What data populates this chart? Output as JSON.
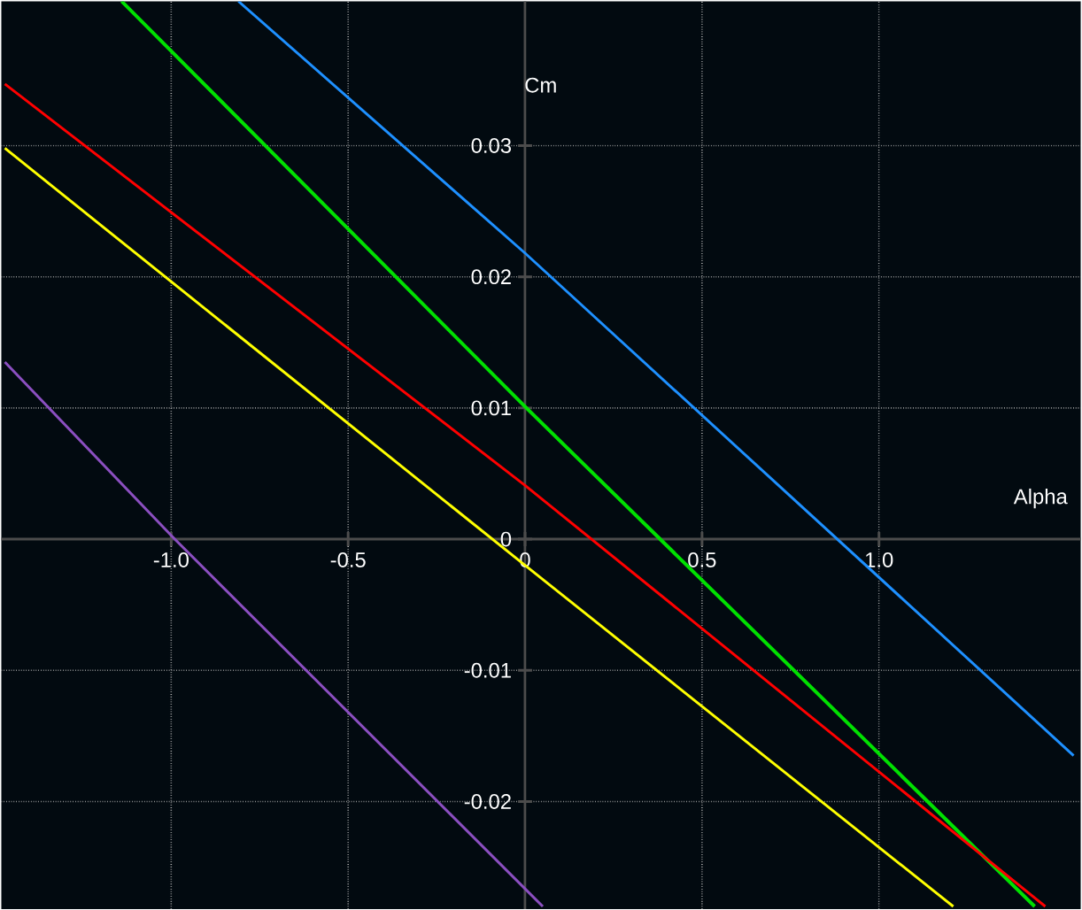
{
  "chart_data": {
    "type": "line",
    "xlabel": "Alpha",
    "ylabel": "Cm",
    "xlim": [
      -1.48,
      1.57
    ],
    "ylim": [
      -0.0282,
      0.041
    ],
    "xticks": [
      {
        "value": -1,
        "label": "-1.0"
      },
      -0.5,
      0,
      0.5,
      {
        "value": 1,
        "label": "1.0"
      }
    ],
    "yticks": [
      -0.02,
      -0.01,
      0,
      0.01,
      0.02,
      0.03
    ],
    "grid": true,
    "marker": "none",
    "line_style": "solid",
    "series": [
      {
        "color": "#1e90ff",
        "x": [
          -0.81,
          0,
          1.55
        ],
        "values": [
          0.041,
          0.0218,
          -0.0165
        ]
      },
      {
        "color": "#00e000",
        "x": [
          -1.14,
          0,
          1.44
        ],
        "values": [
          0.041,
          0.0101,
          -0.028
        ]
      },
      {
        "color": "#ff0000",
        "x": [
          -1.47,
          0,
          1.47
        ],
        "values": [
          0.0347,
          0.0041,
          -0.028
        ]
      },
      {
        "color": "#ffff00",
        "x": [
          -1.47,
          0,
          1.21
        ],
        "values": [
          0.0298,
          -0.002,
          -0.028
        ]
      },
      {
        "color": "#8b4fc0",
        "x": [
          -1.47,
          -0.99,
          0.05
        ],
        "values": [
          0.0135,
          0,
          -0.028
        ]
      }
    ]
  }
}
